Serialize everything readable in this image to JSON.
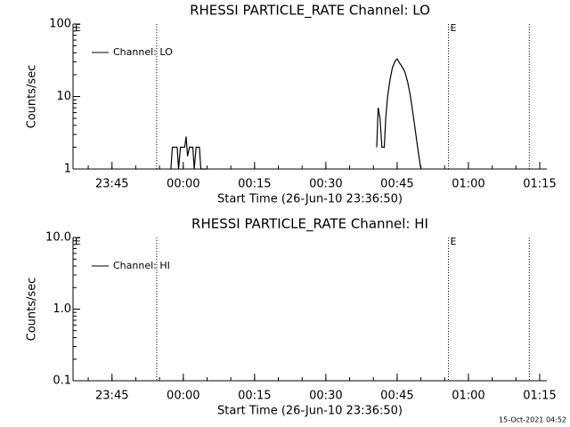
{
  "chart_data": [
    {
      "type": "line",
      "title": "RHESSI PARTICLE_RATE Channel: LO",
      "xlabel": "Start Time (26-Jun-10 23:36:50)",
      "ylabel": "Counts/sec",
      "log_y": true,
      "legend": "upper left",
      "xlim": [
        -23.2,
        76.5
      ],
      "ylim": [
        1,
        100
      ],
      "yticks": [
        1,
        10,
        100
      ],
      "xticks": [
        {
          "value": -15,
          "label": "23:45"
        },
        {
          "value": 0,
          "label": "00:00"
        },
        {
          "value": 15,
          "label": "00:15"
        },
        {
          "value": 30,
          "label": "00:30"
        },
        {
          "value": 45,
          "label": "00:45"
        },
        {
          "value": 60,
          "label": "01:00"
        },
        {
          "value": 75,
          "label": "01:15"
        }
      ],
      "vlines": [
        -5.6,
        55.8,
        72.8
      ],
      "annotations": [
        {
          "text": "E",
          "x": -23.2
        },
        {
          "text": "E",
          "x": 55.8
        }
      ],
      "x": [
        -2.6,
        -2.3,
        -1.3,
        -1.0,
        -0.6,
        0.3,
        0.6,
        0.9,
        1.3,
        2.0,
        2.3,
        2.7,
        3.4,
        3.7,
        4.9,
        null,
        40.7,
        41.0,
        41.4,
        41.8,
        42.3,
        42.6,
        43.0,
        43.5,
        44.0,
        44.6,
        45.0,
        45.5,
        46.0,
        46.6,
        47.2,
        47.8,
        48.3,
        48.8,
        49.3,
        49.8,
        50.0
      ],
      "series": [
        {
          "name": "Channel: LO",
          "color": "#000000",
          "values": [
            1,
            2,
            2,
            1,
            2,
            2,
            2.8,
            1.5,
            2,
            2,
            1,
            2,
            2,
            1,
            1,
            null,
            2,
            7,
            5,
            2,
            2,
            5,
            10,
            17,
            25,
            31,
            33,
            29,
            26,
            22,
            16,
            10,
            6,
            3.5,
            2,
            1.2,
            1
          ]
        }
      ]
    },
    {
      "type": "line",
      "title": "RHESSI PARTICLE_RATE Channel: HI",
      "xlabel": "Start Time (26-Jun-10 23:36:50)",
      "ylabel": "Counts/sec",
      "log_y": true,
      "legend": "upper left",
      "xlim": [
        -23.2,
        76.5
      ],
      "ylim": [
        0.1,
        10
      ],
      "yticks": [
        0.1,
        {
          "value": 1,
          "label": "1.0"
        },
        {
          "value": 10,
          "label": "10.0"
        }
      ],
      "xticks": [
        {
          "value": -15,
          "label": "23:45"
        },
        {
          "value": 0,
          "label": "00:00"
        },
        {
          "value": 15,
          "label": "00:15"
        },
        {
          "value": 30,
          "label": "00:30"
        },
        {
          "value": 45,
          "label": "00:45"
        },
        {
          "value": 60,
          "label": "01:00"
        },
        {
          "value": 75,
          "label": "01:15"
        }
      ],
      "vlines": [
        -5.6,
        55.8,
        72.8
      ],
      "annotations": [
        {
          "text": "E",
          "x": -23.2
        },
        {
          "text": "E",
          "x": 55.8
        }
      ],
      "x": [],
      "series": [
        {
          "name": "Channel: HI",
          "color": "#000000",
          "values": []
        }
      ]
    }
  ],
  "footer": "15-Oct-2021 04:52"
}
